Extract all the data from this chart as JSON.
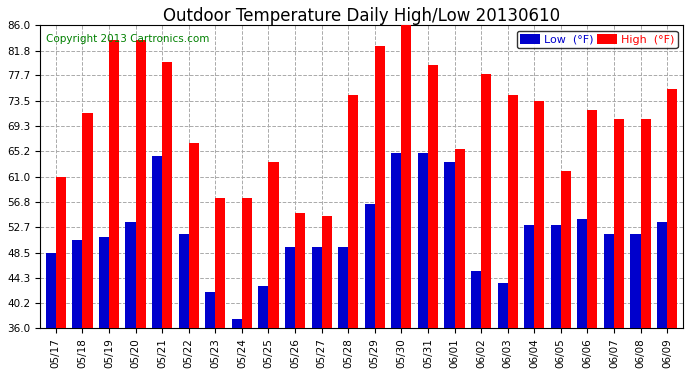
{
  "title": "Outdoor Temperature Daily High/Low 20130610",
  "copyright": "Copyright 2013 Cartronics.com",
  "legend_low": "Low  (°F)",
  "legend_high": "High  (°F)",
  "dates": [
    "05/17",
    "05/18",
    "05/19",
    "05/20",
    "05/21",
    "05/22",
    "05/23",
    "05/24",
    "05/25",
    "05/26",
    "05/27",
    "05/28",
    "05/29",
    "05/30",
    "05/31",
    "06/01",
    "06/02",
    "06/03",
    "06/04",
    "06/05",
    "06/06",
    "06/07",
    "06/08",
    "06/09"
  ],
  "highs": [
    61.0,
    71.5,
    83.5,
    83.5,
    80.0,
    66.5,
    57.5,
    57.5,
    63.5,
    55.0,
    54.5,
    74.5,
    82.5,
    86.5,
    79.5,
    65.5,
    78.0,
    74.5,
    73.5,
    62.0,
    72.0,
    70.5,
    70.5,
    75.5
  ],
  "lows": [
    48.5,
    50.5,
    51.0,
    53.5,
    64.5,
    51.5,
    42.0,
    37.5,
    43.0,
    49.5,
    49.5,
    49.5,
    56.5,
    65.0,
    65.0,
    63.5,
    45.5,
    43.5,
    53.0,
    53.0,
    54.0,
    51.5,
    51.5,
    53.5
  ],
  "bar_color_high": "#ff0000",
  "bar_color_low": "#0000cc",
  "background_color": "#ffffff",
  "grid_color": "#aaaaaa",
  "ymin": 36.0,
  "ymax": 86.0,
  "yticks": [
    36.0,
    40.2,
    44.3,
    48.5,
    52.7,
    56.8,
    61.0,
    65.2,
    69.3,
    73.5,
    77.7,
    81.8,
    86.0
  ],
  "title_fontsize": 12,
  "copyright_fontsize": 7.5,
  "tick_fontsize": 7.5,
  "legend_fontsize": 8
}
